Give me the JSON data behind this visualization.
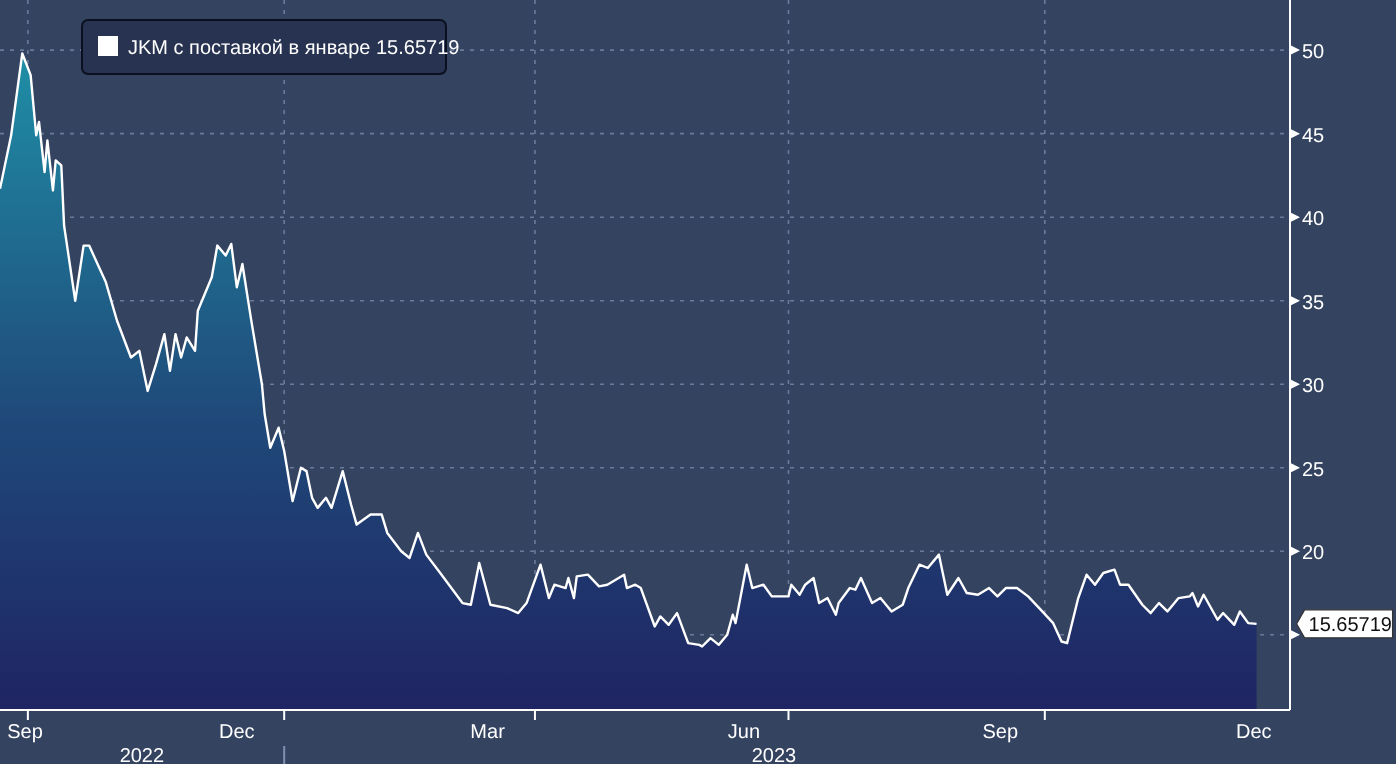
{
  "chart_data": {
    "type": "area",
    "xlim": [
      "2022-09-21",
      "2023-12-28"
    ],
    "ylim": [
      10.5,
      53
    ],
    "xticks": [
      {
        "value": "2022-09-30",
        "label": "Sep"
      },
      {
        "value": "2022-12-15",
        "label": "Dec"
      },
      {
        "value": "2023-03-15",
        "label": "Mar"
      },
      {
        "value": "2023-06-15",
        "label": "Jun"
      },
      {
        "value": "2023-09-15",
        "label": "Sep"
      },
      {
        "value": "2023-12-15",
        "label": "Dec"
      },
      {
        "value": "2022-10-01",
        "label": null
      },
      {
        "value": "2023-01-01",
        "label": null
      },
      {
        "value": "2023-04-01",
        "label": null
      },
      {
        "value": "2023-07-01",
        "label": null
      },
      {
        "value": "2023-10-01",
        "label": null
      }
    ],
    "yticks": [
      {
        "value": 15,
        "label": null
      },
      20,
      25,
      30,
      35,
      40,
      45,
      50
    ],
    "grid": true,
    "legend": "top left",
    "annotations": [
      "2022",
      "2023",
      {
        "text": "15.65719",
        "x": "2023-12-16",
        "y": 15.65719
      }
    ],
    "series": [
      {
        "name": "JKM с поставкой в январе  15.65719",
        "color": "#ffffff",
        "x": [
          "2022-09-21",
          "2022-09-25",
          "2022-09-29",
          "2022-10-02",
          "2022-10-04",
          "2022-10-05",
          "2022-10-07",
          "2022-10-08",
          "2022-10-10",
          "2022-10-11",
          "2022-10-13",
          "2022-10-14",
          "2022-10-18",
          "2022-10-21",
          "2022-10-23",
          "2022-10-29",
          "2022-11-02",
          "2022-11-07",
          "2022-11-10",
          "2022-11-13",
          "2022-11-16",
          "2022-11-19",
          "2022-11-21",
          "2022-11-23",
          "2022-11-25",
          "2022-11-27",
          "2022-11-30",
          "2022-12-01",
          "2022-12-06",
          "2022-12-08",
          "2022-12-11",
          "2022-12-13",
          "2022-12-15",
          "2022-12-17",
          "2022-12-20",
          "2022-12-24",
          "2022-12-25",
          "2022-12-27",
          "2022-12-30",
          "2023-01-01",
          "2023-01-04",
          "2023-01-07",
          "2023-01-09",
          "2023-01-11",
          "2023-01-13",
          "2023-01-16",
          "2023-01-18",
          "2023-01-22",
          "2023-01-25",
          "2023-01-27",
          "2023-02-01",
          "2023-02-05",
          "2023-02-07",
          "2023-02-12",
          "2023-02-15",
          "2023-02-18",
          "2023-02-21",
          "2023-02-26",
          "2023-03-06",
          "2023-03-09",
          "2023-03-12",
          "2023-03-16",
          "2023-03-22",
          "2023-03-26",
          "2023-03-29",
          "2023-04-03",
          "2023-04-06",
          "2023-04-08",
          "2023-04-12",
          "2023-04-13",
          "2023-04-15",
          "2023-04-16",
          "2023-04-20",
          "2023-04-24",
          "2023-04-27",
          "2023-05-03",
          "2023-05-04",
          "2023-05-07",
          "2023-05-09",
          "2023-05-14",
          "2023-05-16",
          "2023-05-19",
          "2023-05-22",
          "2023-05-26",
          "2023-05-30",
          "2023-05-31",
          "2023-06-03",
          "2023-06-06",
          "2023-06-09",
          "2023-06-11",
          "2023-06-12",
          "2023-06-16",
          "2023-06-18",
          "2023-06-22",
          "2023-06-25",
          "2023-07-01",
          "2023-07-02",
          "2023-07-05",
          "2023-07-07",
          "2023-07-10",
          "2023-07-12",
          "2023-07-15",
          "2023-07-18",
          "2023-07-19",
          "2023-07-23",
          "2023-07-25",
          "2023-07-27",
          "2023-07-31",
          "2023-08-03",
          "2023-08-07",
          "2023-08-11",
          "2023-08-13",
          "2023-08-17",
          "2023-08-20",
          "2023-08-24",
          "2023-08-27",
          "2023-08-31",
          "2023-09-03",
          "2023-09-07",
          "2023-09-11",
          "2023-09-14",
          "2023-09-17",
          "2023-09-21",
          "2023-09-25",
          "2023-09-29",
          "2023-10-04",
          "2023-10-07",
          "2023-10-09",
          "2023-10-13",
          "2023-10-16",
          "2023-10-19",
          "2023-10-22",
          "2023-10-26",
          "2023-10-28",
          "2023-10-31",
          "2023-11-05",
          "2023-11-08",
          "2023-11-11",
          "2023-11-14",
          "2023-11-18",
          "2023-11-22",
          "2023-11-23",
          "2023-11-25",
          "2023-11-27",
          "2023-11-29",
          "2023-12-02",
          "2023-12-04",
          "2023-12-08",
          "2023-12-10",
          "2023-12-13",
          "2023-12-16"
        ],
        "values": [
          41.7,
          44.9,
          49.8,
          48.5,
          44.9,
          45.7,
          42.7,
          44.6,
          41.6,
          43.4,
          43.1,
          39.5,
          35,
          38.3,
          38.3,
          36.1,
          33.8,
          31.6,
          32,
          29.6,
          31.2,
          33,
          30.8,
          33,
          31.6,
          32.8,
          32,
          34.4,
          36.4,
          38.3,
          37.7,
          38.4,
          35.8,
          37.2,
          34,
          30,
          28.2,
          26.2,
          27.4,
          26,
          23,
          25,
          24.8,
          23.2,
          22.6,
          23.2,
          22.6,
          24.8,
          22.8,
          21.6,
          22.2,
          22.2,
          21.1,
          20,
          19.6,
          21.1,
          19.8,
          18.7,
          16.9,
          16.8,
          19.3,
          16.8,
          16.6,
          16.3,
          16.9,
          19.2,
          17.2,
          18,
          17.8,
          18.4,
          17.2,
          18.5,
          18.6,
          17.9,
          18,
          18.6,
          17.8,
          18,
          17.8,
          15.5,
          16.1,
          15.6,
          16.3,
          14.5,
          14.4,
          14.3,
          14.8,
          14.4,
          15,
          16.2,
          15.7,
          19.2,
          17.8,
          18,
          17.3,
          17.3,
          18,
          17.4,
          18,
          18.4,
          16.9,
          17.2,
          16.2,
          16.9,
          17.8,
          17.7,
          18.4,
          16.9,
          17.2,
          16.4,
          16.8,
          17.8,
          19.2,
          19,
          19.8,
          17.4,
          18.4,
          17.5,
          17.4,
          17.8,
          17.3,
          17.8,
          17.8,
          17.3,
          16.6,
          15.7,
          14.6,
          14.5,
          17.2,
          18.6,
          18,
          18.7,
          18.9,
          18,
          18,
          16.8,
          16.3,
          16.9,
          16.4,
          17.2,
          17.3,
          17.5,
          16.7,
          17.4,
          16.8,
          15.9,
          16.3,
          15.6,
          16.4,
          15.7,
          15.65719
        ]
      }
    ]
  }
}
